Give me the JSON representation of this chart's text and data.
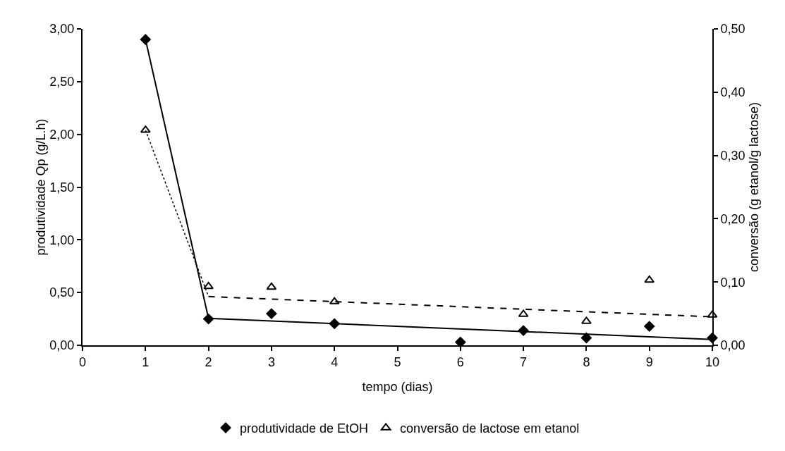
{
  "chart_data": {
    "type": "scatter",
    "xlabel": "tempo (dias)",
    "ylabel": "produtividade Qp (g/L.h)",
    "y2label": "conversão (g etanol/g lactose)",
    "xlim": [
      0,
      10
    ],
    "xticks": [
      0,
      1,
      2,
      3,
      4,
      5,
      6,
      7,
      8,
      9,
      10
    ],
    "ylim": [
      0,
      3
    ],
    "yticks": [
      {
        "value": 0,
        "label": "0,00"
      },
      {
        "value": 0.5,
        "label": "0,50"
      },
      {
        "value": 1,
        "label": "1,00"
      },
      {
        "value": 1.5,
        "label": "1,50"
      },
      {
        "value": 2,
        "label": "2,00"
      },
      {
        "value": 2.5,
        "label": "2,50"
      },
      {
        "value": 3,
        "label": "3,00"
      }
    ],
    "y2lim": [
      0,
      0.5
    ],
    "y2ticks": [
      {
        "value": 0,
        "label": "0,00"
      },
      {
        "value": 0.1,
        "label": "0,10"
      },
      {
        "value": 0.2,
        "label": "0,20"
      },
      {
        "value": 0.3,
        "label": "0,30"
      },
      {
        "value": 0.4,
        "label": "0,40"
      },
      {
        "value": 0.5,
        "label": "0,50"
      }
    ],
    "grid": false,
    "legend": "bottom",
    "series": [
      {
        "type": "line",
        "color": "#000000",
        "line_style": "solid",
        "marker": "none",
        "x": [
          1,
          2,
          10
        ],
        "values": [
          2.9,
          0.256,
          0.055
        ]
      },
      {
        "type": "line",
        "axis": "y2",
        "color": "#000000",
        "line_style": "dotted",
        "marker": "none",
        "x": [
          1,
          2
        ],
        "values": [
          0.34,
          0.077
        ]
      },
      {
        "type": "line",
        "axis": "y2",
        "color": "#000000",
        "line_style": "dashed",
        "marker": "none",
        "x": [
          2,
          10
        ],
        "values": [
          0.077,
          0.045
        ]
      },
      {
        "type": "scatter",
        "name": "produtividade de EtOH",
        "color": "#000000",
        "marker": "diamond",
        "x": [
          1,
          2,
          3,
          4,
          6,
          7,
          8,
          9,
          10
        ],
        "values": [
          2.9,
          0.25,
          0.3,
          0.205,
          0.03,
          0.14,
          0.07,
          0.18,
          0.07
        ]
      },
      {
        "type": "scatter",
        "axis": "y2",
        "name": "conversão de lactose em etanol",
        "color": "#000000",
        "marker": "triangle",
        "x": [
          1,
          2,
          3,
          4,
          6,
          7,
          8,
          9,
          10
        ],
        "values": [
          0.34,
          0.093,
          0.092,
          0.069,
          null,
          0.049,
          0.038,
          0.103,
          0.048
        ]
      }
    ]
  }
}
